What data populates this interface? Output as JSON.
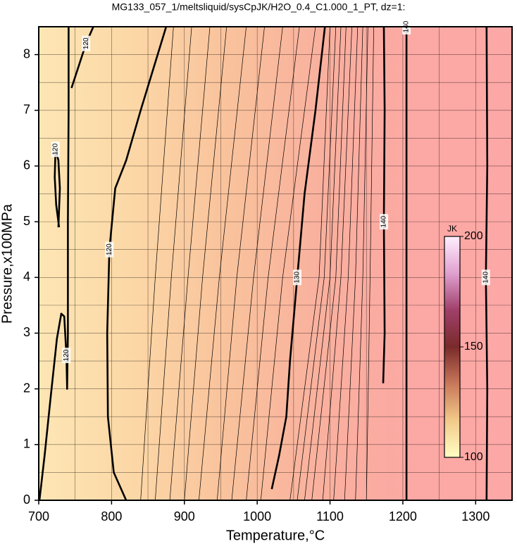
{
  "chart_data": {
    "type": "contour",
    "title": "MG133_057_1/meltsliquid/sysCpJK/H2O_0.4_C1.000_1_PT, dz=1:",
    "xlabel": "Temperature,°C",
    "ylabel": "Pressure,x100MPa",
    "xlim": [
      700,
      1350
    ],
    "ylim": [
      0,
      8.5
    ],
    "xticks": [
      700,
      800,
      900,
      1000,
      1100,
      1200,
      1300
    ],
    "yticks": [
      0,
      1,
      2,
      3,
      4,
      5,
      6,
      7,
      8
    ],
    "xgrid": [
      750,
      800,
      850,
      900,
      950,
      1000,
      1050,
      1100,
      1150,
      1200,
      1250,
      1300
    ],
    "ygrid": [
      0.5,
      1,
      1.5,
      2,
      2.5,
      3,
      3.5,
      4,
      4.5,
      5,
      5.5,
      6,
      6.5,
      7,
      7.5,
      8
    ],
    "field_colors": [
      "#fde6b4",
      "#fcd7a6",
      "#f9c29c",
      "#f9b09e",
      "#fca8a4",
      "#fca8a6"
    ],
    "colorbar": {
      "label": "JK",
      "clim": [
        100,
        200
      ],
      "ticks": [
        100,
        150,
        200
      ],
      "colors": [
        "#ffffc4",
        "#f2c98a",
        "#c8785a",
        "#7a2a2a",
        "#a0406a",
        "#e0a0d0",
        "#fff0ff"
      ]
    },
    "contours": [
      {
        "level": 120,
        "bold": true,
        "x": [
          701,
          708,
          716,
          725,
          731,
          735,
          738,
          739,
          740,
          740,
          741,
          741
        ],
        "y": [
          0,
          0.8,
          1.8,
          2.9,
          3.35,
          3.3,
          2.6,
          2.0,
          3,
          5,
          7,
          8.5
        ]
      },
      {
        "level": 120,
        "bold": true,
        "x": [
          728,
          724,
          722,
          723,
          727,
          729,
          727
        ],
        "y": [
          4.9,
          5.3,
          5.8,
          6.3,
          6.1,
          5.6,
          4.9
        ]
      },
      {
        "level": 120,
        "bold": true,
        "x": [
          745,
          755,
          765,
          775
        ],
        "y": [
          7.4,
          7.8,
          8.2,
          8.5
        ]
      },
      {
        "level": 120,
        "bold": true,
        "x": [
          820,
          803,
          795,
          794,
          797,
          805,
          820,
          840,
          875
        ],
        "y": [
          0,
          0.5,
          1.5,
          3,
          4.5,
          5.6,
          6.1,
          7,
          8.5
        ]
      },
      {
        "level": 130,
        "bold": true,
        "x": [
          1020,
          1030,
          1040,
          1045,
          1055,
          1065,
          1080,
          1093
        ],
        "y": [
          0.2,
          0.8,
          1.5,
          2.5,
          4,
          5.5,
          7,
          8.5
        ]
      },
      {
        "level": 140,
        "bold": true,
        "x": [
          1173,
          1175,
          1174,
          1175,
          1174
        ],
        "y": [
          2.1,
          3,
          5,
          7,
          8.5
        ]
      },
      {
        "level": 140,
        "bold": true,
        "x": [
          1205,
          1205
        ],
        "y": [
          0,
          8.5
        ]
      },
      {
        "level": 140,
        "bold": true,
        "x": [
          1315,
          1316,
          1314,
          1316,
          1315
        ],
        "y": [
          0,
          2,
          4,
          6,
          8.5
        ]
      },
      {
        "level": 121,
        "bold": false,
        "x": [
          840,
          860,
          885
        ],
        "y": [
          0,
          4,
          8.5
        ]
      },
      {
        "level": 122,
        "bold": false,
        "x": [
          860,
          882,
          910
        ],
        "y": [
          0,
          4,
          8.5
        ]
      },
      {
        "level": 123,
        "bold": false,
        "x": [
          880,
          905,
          935
        ],
        "y": [
          0,
          4,
          8.5
        ]
      },
      {
        "level": 124,
        "bold": false,
        "x": [
          900,
          925,
          958
        ],
        "y": [
          0,
          4,
          8.5
        ]
      },
      {
        "level": 125,
        "bold": false,
        "x": [
          920,
          948,
          985
        ],
        "y": [
          0,
          4,
          8.5
        ]
      },
      {
        "level": 126,
        "bold": false,
        "x": [
          945,
          972,
          1010
        ],
        "y": [
          0,
          4,
          8.5
        ]
      },
      {
        "level": 127,
        "bold": false,
        "x": [
          965,
          995,
          1035
        ],
        "y": [
          0,
          4,
          8.5
        ]
      },
      {
        "level": 128,
        "bold": false,
        "x": [
          985,
          1015,
          1058
        ],
        "y": [
          0,
          4,
          8.5
        ]
      },
      {
        "level": 129,
        "bold": false,
        "x": [
          1005,
          1035,
          1080
        ],
        "y": [
          0,
          4,
          8.5
        ]
      },
      {
        "level": 131,
        "bold": false,
        "x": [
          1045,
          1085,
          1100
        ],
        "y": [
          0,
          4,
          8.5
        ]
      },
      {
        "level": 132,
        "bold": false,
        "x": [
          1055,
          1092,
          1108
        ],
        "y": [
          0,
          4,
          8.5
        ]
      },
      {
        "level": 133,
        "bold": false,
        "x": [
          1065,
          1100,
          1115
        ],
        "y": [
          0,
          4,
          8.5
        ]
      },
      {
        "level": 134,
        "bold": false,
        "x": [
          1075,
          1108,
          1122
        ],
        "y": [
          0,
          4,
          8.5
        ]
      },
      {
        "level": 135,
        "bold": false,
        "x": [
          1090,
          1115,
          1130
        ],
        "y": [
          0,
          4,
          8.5
        ]
      },
      {
        "level": 136,
        "bold": false,
        "x": [
          1105,
          1125,
          1138
        ],
        "y": [
          0,
          4,
          8.5
        ]
      },
      {
        "level": 137,
        "bold": false,
        "x": [
          1120,
          1135,
          1145
        ],
        "y": [
          0,
          4,
          8.5
        ]
      },
      {
        "level": 138,
        "bold": false,
        "x": [
          1135,
          1145,
          1152
        ],
        "y": [
          0,
          4,
          8.5
        ]
      },
      {
        "level": 139,
        "bold": false,
        "x": [
          1150,
          1155,
          1160
        ],
        "y": [
          0,
          4,
          8.5
        ]
      }
    ]
  }
}
